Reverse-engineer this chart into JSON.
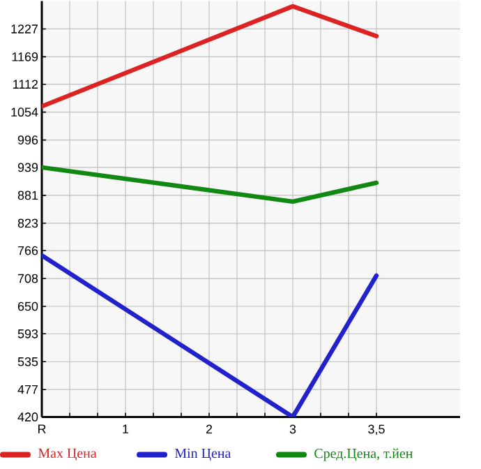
{
  "chart_data": {
    "type": "line",
    "categories": [
      "R",
      "1",
      "2",
      "3",
      "3,5"
    ],
    "series": [
      {
        "name": "Max Цена",
        "color": "#dd2222",
        "values": [
          1066,
          null,
          null,
          1274,
          1212
        ]
      },
      {
        "name": "Min Цена",
        "color": "#2222cc",
        "values": [
          756,
          null,
          null,
          420,
          714
        ]
      },
      {
        "name": "Сред.Цена, т.йен",
        "color": "#118811",
        "values": [
          939,
          null,
          null,
          868,
          907
        ]
      }
    ],
    "ylim": [
      420,
      1285
    ],
    "yticks": [
      420,
      477,
      535,
      593,
      650,
      708,
      766,
      823,
      881,
      939,
      996,
      1054,
      1112,
      1169,
      1227
    ],
    "grid": true,
    "legend": "bottom",
    "marker": "none",
    "line_style": "solid"
  }
}
